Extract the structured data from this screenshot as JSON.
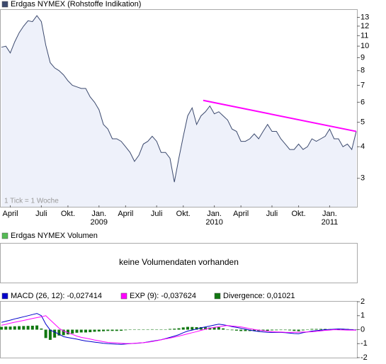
{
  "chart_data": [
    {
      "type": "line",
      "title": "Erdgas NYMEX (Rohstoffe Indikation)",
      "log_scale": true,
      "grid": false,
      "color": "#3c4a6e",
      "fill_color": "#eef1fa",
      "categories": [
        null,
        null,
        "April",
        null,
        null,
        null,
        null,
        null,
        null,
        "Juli",
        null,
        null,
        null,
        null,
        null,
        "Okt.",
        null,
        null,
        null,
        null,
        null,
        null,
        "Jan.",
        null,
        null,
        null,
        null,
        null,
        "April",
        null,
        null,
        null,
        null,
        null,
        null,
        "Juli",
        null,
        null,
        null,
        null,
        null,
        "Okt.",
        null,
        null,
        null,
        null,
        null,
        null,
        "Jan.",
        null,
        null,
        null,
        null,
        null,
        "April",
        null,
        null,
        null,
        null,
        null,
        null,
        "Juli",
        null,
        null,
        null,
        null,
        null,
        "Okt.",
        null,
        null,
        null,
        null,
        null,
        null,
        "Jan.",
        null,
        null,
        null,
        null,
        null,
        null
      ],
      "category_years": [
        null,
        null,
        null,
        null,
        null,
        null,
        null,
        null,
        null,
        null,
        null,
        null,
        null,
        null,
        null,
        null,
        null,
        null,
        null,
        null,
        null,
        null,
        "2009",
        null,
        null,
        null,
        null,
        null,
        null,
        null,
        null,
        null,
        null,
        null,
        null,
        null,
        null,
        null,
        null,
        null,
        null,
        null,
        null,
        null,
        null,
        null,
        null,
        null,
        "2010",
        null,
        null,
        null,
        null,
        null,
        null,
        null,
        null,
        null,
        null,
        null,
        null,
        null,
        null,
        null,
        null,
        null,
        null,
        null,
        null,
        null,
        null,
        null,
        null,
        null,
        "2011",
        null,
        null,
        null,
        null,
        null,
        null
      ],
      "values": [
        9.9,
        10,
        9.4,
        10.4,
        11.3,
        12.0,
        12.6,
        12.5,
        13.2,
        12.5,
        10.1,
        8.6,
        8.2,
        8.0,
        7.7,
        7.3,
        7.0,
        6.9,
        6.8,
        6.8,
        6.3,
        6.0,
        5.6,
        4.9,
        4.7,
        4.3,
        4.3,
        4.2,
        4.0,
        3.8,
        3.5,
        3.7,
        4.1,
        4.2,
        4.4,
        4.2,
        3.8,
        3.8,
        3.6,
        2.9,
        3.6,
        4.4,
        5.3,
        5.7,
        4.9,
        5.3,
        5.5,
        5.8,
        5.4,
        5.5,
        5.3,
        5.1,
        4.7,
        4.6,
        4.2,
        4.2,
        4.3,
        4.5,
        4.3,
        4.6,
        4.9,
        4.6,
        4.6,
        4.3,
        4.1,
        3.9,
        3.9,
        4.1,
        3.9,
        4.0,
        4.3,
        4.2,
        4.3,
        4.4,
        4.7,
        4.3,
        4.3,
        4.0,
        4.1,
        3.9,
        4.6
      ],
      "ylim": [
        2.3,
        14
      ],
      "yticks": [
        3,
        4,
        5,
        6,
        7,
        8,
        9,
        10,
        11,
        12,
        13
      ],
      "trend_line": {
        "color": "#ff00ff",
        "x": [
          45.5,
          80
        ],
        "y": [
          6.1,
          4.6
        ]
      },
      "annotation": "1 Tick = 1 Woche"
    },
    {
      "type": "empty",
      "title": "Erdgas NYMEX Volumen",
      "color": "#55bb55",
      "message": "keine Volumendaten vorhanden"
    },
    {
      "type": "macd",
      "ylim": [
        -2,
        2
      ],
      "yticks": [
        2,
        1,
        0,
        -1,
        -2
      ],
      "series": [
        {
          "name": "MACD (26, 12): -0,027414",
          "color": "#0000cc",
          "style": "line",
          "values": [
            0.52,
            0.6,
            0.68,
            0.77,
            0.84,
            0.92,
            1.0,
            1.08,
            1.16,
            1.0,
            0.4,
            -0.03,
            -0.17,
            -0.32,
            -0.5,
            -0.56,
            -0.62,
            -0.68,
            -0.75,
            -0.81,
            -0.85,
            -0.89,
            -0.93,
            -0.97,
            -1.0,
            -1.02,
            -1.04,
            -1.05,
            -1.03,
            -1.0,
            -0.98,
            -0.96,
            -0.93,
            -0.88,
            -0.82,
            -0.77,
            -0.72,
            -0.64,
            -0.55,
            -0.46,
            -0.36,
            -0.22,
            -0.1,
            -0.03,
            0.04,
            0.13,
            0.2,
            0.26,
            0.33,
            0.39,
            0.35,
            0.29,
            0.22,
            0.16,
            0.1,
            0.04,
            -0.03,
            -0.09,
            -0.13,
            -0.16,
            -0.19,
            -0.2,
            -0.2,
            -0.2,
            -0.22,
            -0.25,
            -0.28,
            -0.29,
            -0.22,
            -0.16,
            -0.1,
            -0.07,
            -0.04,
            0,
            0.01,
            0.03,
            0.05,
            0.04,
            0.02,
            0,
            -0.03
          ]
        },
        {
          "name": "EXP (9): -0,037624",
          "color": "#ff00ff",
          "style": "line",
          "values": [
            0.32,
            0.38,
            0.46,
            0.53,
            0.59,
            0.66,
            0.73,
            0.8,
            0.86,
            0.92,
            1.0,
            0.7,
            0.4,
            0.1,
            -0.1,
            -0.22,
            -0.34,
            -0.46,
            -0.55,
            -0.61,
            -0.67,
            -0.74,
            -0.8,
            -0.86,
            -0.91,
            -0.93,
            -0.95,
            -0.97,
            -0.99,
            -0.99,
            -0.97,
            -0.95,
            -0.93,
            -0.9,
            -0.85,
            -0.79,
            -0.73,
            -0.66,
            -0.6,
            -0.53,
            -0.46,
            -0.38,
            -0.3,
            -0.22,
            -0.14,
            -0.05,
            0.03,
            0.11,
            0.16,
            0.21,
            0.26,
            0.3,
            0.26,
            0.23,
            0.2,
            0.14,
            0.07,
            0.01,
            -0.03,
            -0.07,
            -0.11,
            -0.15,
            -0.16,
            -0.17,
            -0.19,
            -0.2,
            -0.19,
            -0.18,
            -0.17,
            -0.16,
            -0.15,
            -0.12,
            -0.09,
            -0.05,
            -0.03,
            0,
            -0.01,
            -0.02,
            -0.03,
            -0.03,
            -0.04
          ]
        },
        {
          "name": "Divergence: 0,01021",
          "color": "#117711",
          "style": "bar",
          "values": [
            0.2,
            0.22,
            0.22,
            0.24,
            0.25,
            0.26,
            0.27,
            0.28,
            0.3,
            0.08,
            -0.6,
            -0.73,
            -0.57,
            -0.42,
            -0.4,
            -0.34,
            -0.28,
            -0.22,
            -0.2,
            -0.2,
            -0.18,
            -0.15,
            -0.13,
            -0.11,
            -0.09,
            -0.09,
            -0.09,
            -0.08,
            -0.04,
            -0.01,
            -0.01,
            -0.01,
            0,
            0.02,
            0.03,
            0.02,
            0.01,
            0.02,
            0.05,
            0.07,
            0.1,
            0.16,
            0.2,
            0.19,
            0.18,
            0.18,
            0.17,
            0.15,
            0.17,
            0.18,
            0.09,
            -0.01,
            -0.04,
            -0.07,
            -0.1,
            -0.1,
            -0.1,
            -0.1,
            -0.1,
            -0.09,
            -0.08,
            -0.05,
            -0.04,
            -0.03,
            -0.03,
            -0.05,
            -0.09,
            -0.11,
            -0.05,
            0,
            0.05,
            0.05,
            0.05,
            0.05,
            0.04,
            0.03,
            0.06,
            0.06,
            0.05,
            0.03,
            0.01
          ]
        }
      ]
    }
  ]
}
